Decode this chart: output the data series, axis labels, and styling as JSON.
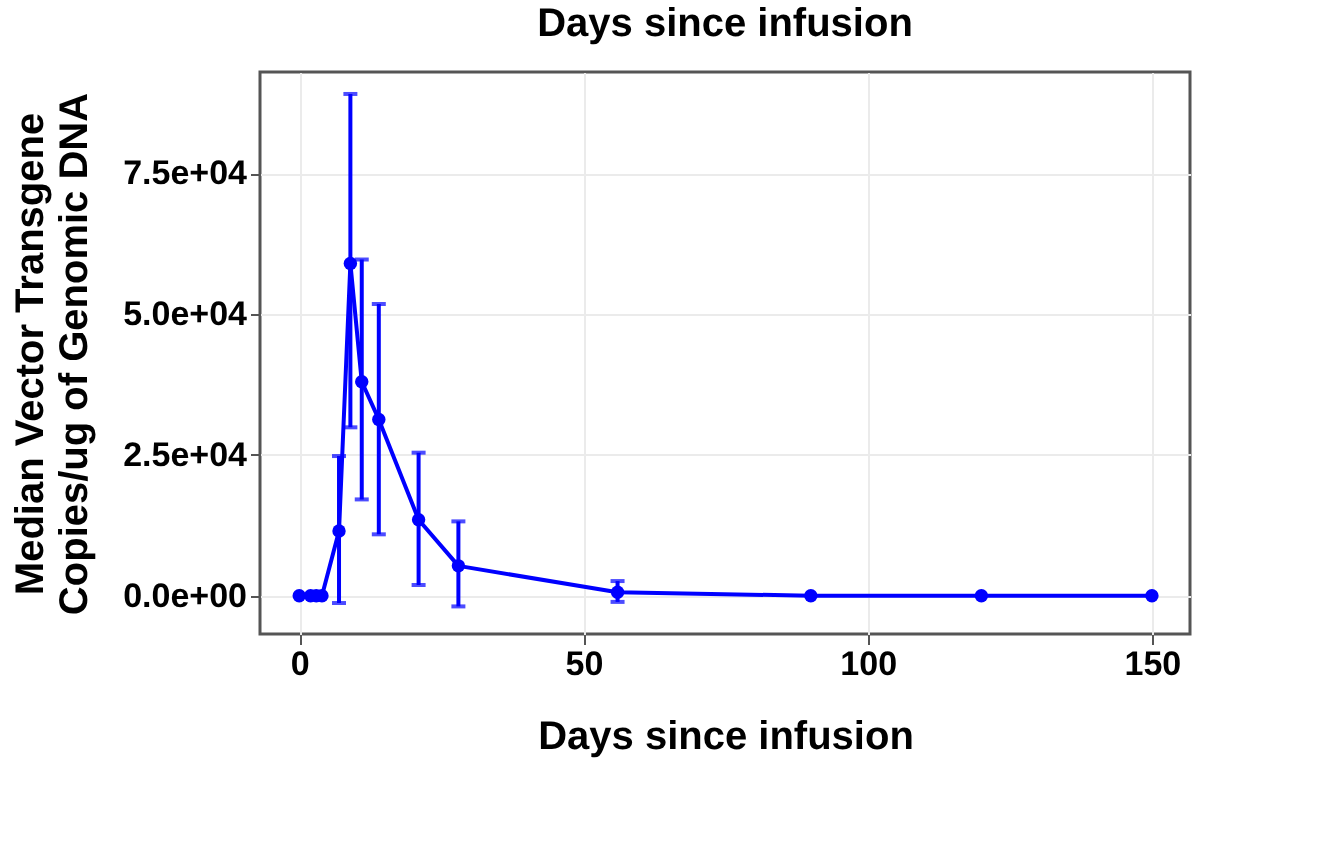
{
  "chart_data": {
    "type": "line",
    "title": "Days since infusion",
    "xlabel": "Days since infusion",
    "ylabel": "Median Vector Transgene\nCopies/ug of Genomic DNA",
    "x": [
      0,
      2,
      3,
      4,
      7,
      9,
      11,
      14,
      21,
      28,
      56,
      90,
      120,
      150
    ],
    "series": [
      {
        "color": "#0000ff",
        "values": [
          0,
          0,
          0,
          0,
          11500,
          59000,
          38000,
          31300,
          13500,
          5300,
          600,
          0,
          0,
          0
        ],
        "errors": [
          null,
          null,
          null,
          null,
          [
            -1300,
            24800
          ],
          [
            29900,
            89100
          ],
          [
            17100,
            59700
          ],
          [
            10900,
            51800
          ],
          [
            1900,
            25400
          ],
          [
            -1900,
            13200
          ],
          [
            -1100,
            2600
          ],
          null,
          null,
          null
        ]
      }
    ],
    "marker": "circle",
    "line_style": "solid",
    "xlim": [
      -6.9,
      156.7
    ],
    "xticks": [
      0,
      50,
      100,
      150
    ],
    "ylim": [
      -6800,
      93000
    ],
    "yticks": [
      {
        "value": 0,
        "label": "0.0e+00"
      },
      {
        "value": 25000,
        "label": "2.5e+04"
      },
      {
        "value": 50000,
        "label": "5.0e+04"
      },
      {
        "value": 75000,
        "label": "7.5e+04"
      }
    ],
    "grid": true
  }
}
